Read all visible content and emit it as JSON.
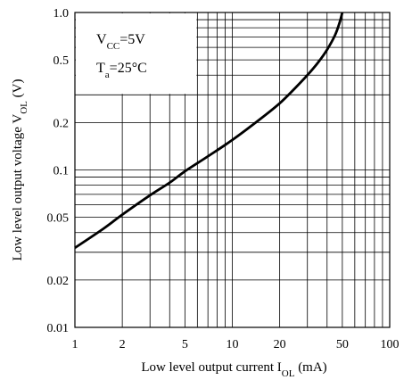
{
  "chart_data": {
    "type": "line",
    "x_scale": "log",
    "y_scale": "log",
    "xlim": [
      1,
      100
    ],
    "ylim": [
      0.01,
      1.0
    ],
    "x_ticks": [
      {
        "value": 1,
        "label": "1"
      },
      {
        "value": 2,
        "label": "2"
      },
      {
        "value": 5,
        "label": "5"
      },
      {
        "value": 10,
        "label": "10"
      },
      {
        "value": 20,
        "label": "20"
      },
      {
        "value": 50,
        "label": "50"
      },
      {
        "value": 100,
        "label": "100"
      }
    ],
    "y_ticks": [
      {
        "value": 0.01,
        "label": "0.01"
      },
      {
        "value": 0.02,
        "label": "0.02"
      },
      {
        "value": 0.05,
        "label": "0.05"
      },
      {
        "value": 0.1,
        "label": "0.1"
      },
      {
        "value": 0.2,
        "label": "0.2"
      },
      {
        "value": 0.5,
        "label": "0.5"
      },
      {
        "value": 1.0,
        "label": "1.0"
      }
    ],
    "x_gridlines": [
      2,
      3,
      4,
      5,
      6,
      7,
      8,
      9,
      10,
      20,
      30,
      40,
      50,
      60,
      70,
      80,
      90
    ],
    "y_gridlines": [
      0.02,
      0.03,
      0.04,
      0.05,
      0.06,
      0.07,
      0.08,
      0.09,
      0.1,
      0.2,
      0.3,
      0.4,
      0.5,
      0.6,
      0.7,
      0.8,
      0.9
    ],
    "xlabel": {
      "prefix": "Low level output current I",
      "sub": "OL",
      "suffix": " (mA)"
    },
    "ylabel": {
      "prefix": "Low level output voltage V",
      "sub": "OL",
      "suffix": " (V)"
    },
    "conditions": {
      "vcc": {
        "prefix": "V",
        "sub": "CC",
        "suffix": "=5V"
      },
      "ta": {
        "prefix": "T",
        "sub": "a",
        "suffix": "=25°C"
      }
    },
    "series": [
      {
        "x": [
          1,
          1.5,
          2,
          3,
          4,
          5,
          7,
          10,
          15,
          20,
          25,
          30,
          35,
          40,
          45,
          48,
          50
        ],
        "y": [
          0.032,
          0.042,
          0.052,
          0.069,
          0.083,
          0.098,
          0.122,
          0.155,
          0.21,
          0.265,
          0.33,
          0.4,
          0.48,
          0.58,
          0.72,
          0.86,
          1.0
        ]
      }
    ],
    "grid": true,
    "colors": {
      "line": "#000000",
      "grid": "#000000",
      "background": "#ffffff"
    }
  }
}
